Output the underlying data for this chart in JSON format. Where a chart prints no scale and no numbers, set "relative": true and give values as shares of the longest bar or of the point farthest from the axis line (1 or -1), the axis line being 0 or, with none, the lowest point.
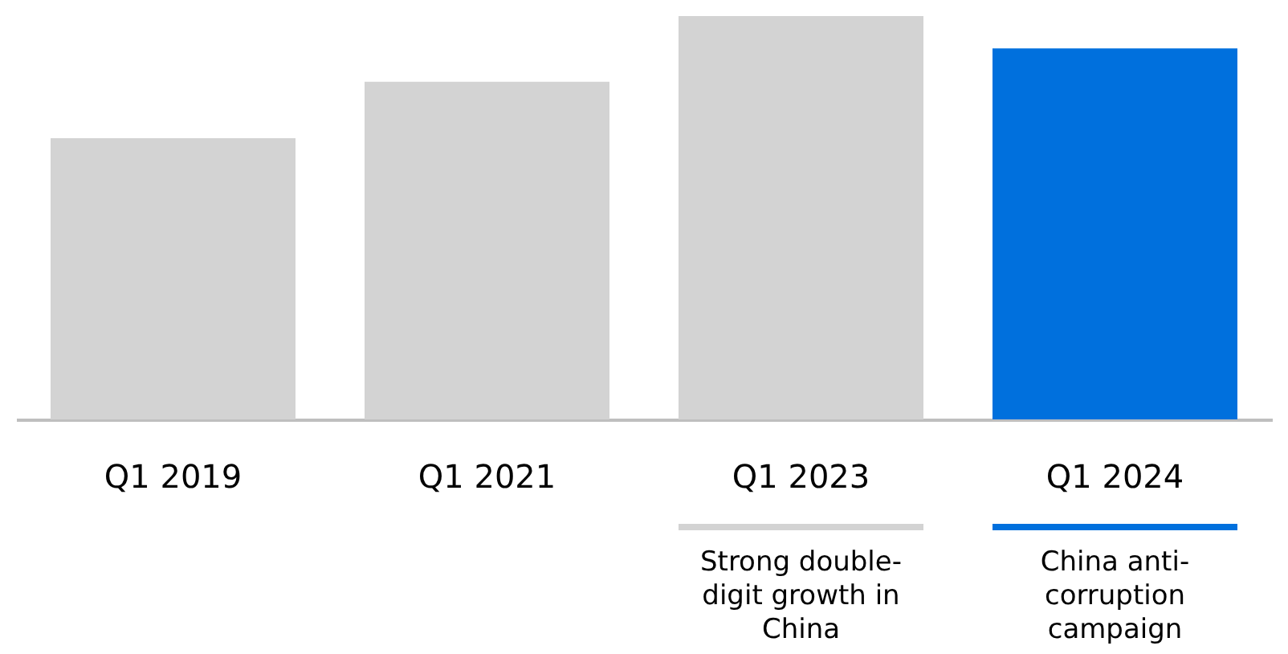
{
  "chart_data": {
    "type": "bar",
    "relative": true,
    "categories": [
      "Q1 2019",
      "Q1  2021",
      "Q1 2023",
      "Q1 2024"
    ],
    "values": [
      0.697,
      0.837,
      1,
      0.92
    ],
    "colors": [
      "#d3d3d3",
      "#d3d3d3",
      "#d3d3d3",
      "#0070dd"
    ],
    "annotations": [
      "Strong double-\ndigit growth in\nChina",
      "China anti-\ncorruption\ncampaign"
    ]
  }
}
